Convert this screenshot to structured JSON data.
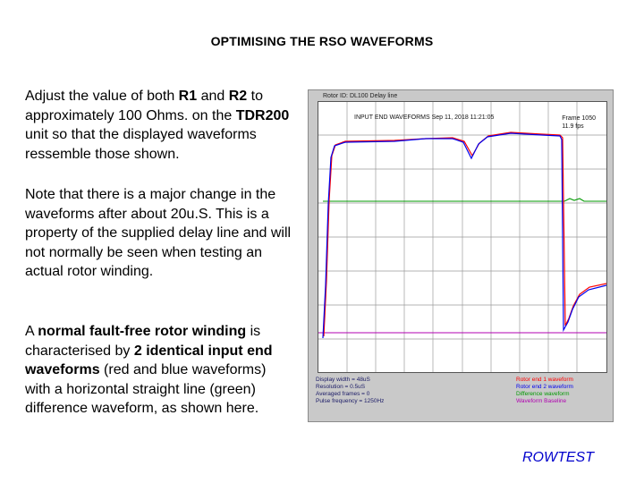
{
  "title": "OPTIMISING THE RSO WAVEFORMS",
  "para1": {
    "t1": "Adjust the value of both ",
    "b1": "R1",
    "t2": " and ",
    "b2": "R2",
    "t3": " to approximately 100 Ohms. on the ",
    "b3": "TDR200",
    "t4": " unit so that the displayed waveforms ressemble those shown."
  },
  "para2": "Note that there is a major change in the waveforms after about 20u.S. This is a property of the supplied delay line and will not normally be seen when testing an actual rotor winding.",
  "para3": {
    "t1": "A ",
    "b1": "normal fault-free rotor winding",
    "t2": " is characterised by ",
    "b2": "2 identical input end waveforms",
    "t3": " (red and blue waveforms) with a horizontal straight line (green) difference waveform, as shown here."
  },
  "scope": {
    "rotor_id": "Rotor ID: DL100 Delay line",
    "plot_title": "INPUT END WAVEFORMS  Sep 11, 2018  11:21:05",
    "frame": "Frame 1050",
    "fps": "11.9 fps",
    "info": {
      "display_width": "Display width = 48uS",
      "resolution": "Resolution = 0.5uS",
      "averaged": "Averaged frames = 0",
      "pulse_freq": "Pulse frequency =   1250Hz"
    },
    "legend": {
      "red": "Rotor end 1 waveform",
      "blue": "Rotor end 2 waveform",
      "green": "Difference waveform",
      "magenta": "Waveform Baseline"
    },
    "colors": {
      "red": "#ff0000",
      "blue": "#0000ee",
      "green": "#009900",
      "magenta": "#b000b0",
      "grid": "#9a9a9a"
    }
  },
  "brand": "ROWTEST"
}
